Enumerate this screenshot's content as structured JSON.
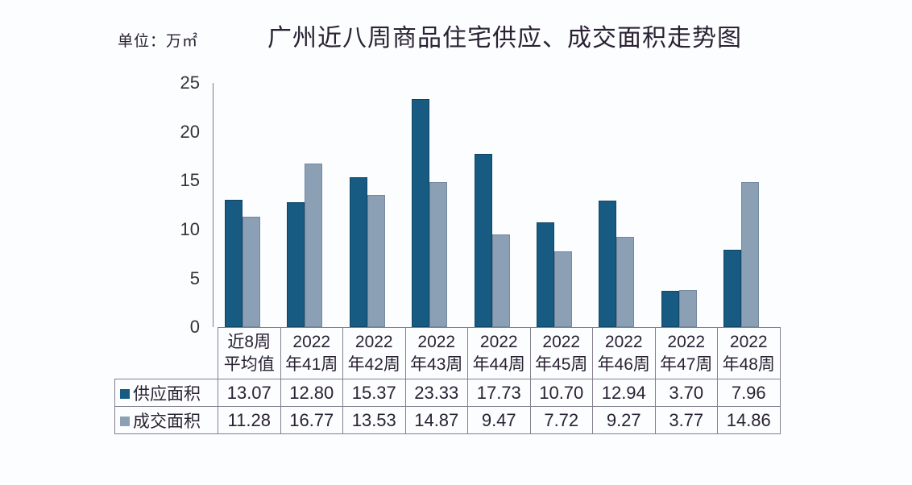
{
  "header": {
    "unit": "单位：万㎡",
    "title": "广州近八周商品住宅供应、成交面积走势图"
  },
  "colors": {
    "supply": "#175a82",
    "deal": "#8b9fb5"
  },
  "y_ticks": [
    "25",
    "20",
    "15",
    "10",
    "5",
    "0"
  ],
  "table": {
    "categories": [
      [
        "近8周",
        "平均值"
      ],
      [
        "2022",
        "年41周"
      ],
      [
        "2022",
        "年42周"
      ],
      [
        "2022",
        "年43周"
      ],
      [
        "2022",
        "年44周"
      ],
      [
        "2022",
        "年45周"
      ],
      [
        "2022",
        "年46周"
      ],
      [
        "2022",
        "年47周"
      ],
      [
        "2022",
        "年48周"
      ]
    ],
    "rows": [
      {
        "label": "供应面积",
        "values": [
          "13.07",
          "12.80",
          "15.37",
          "23.33",
          "17.73",
          "10.70",
          "12.94",
          "3.70",
          "7.96"
        ]
      },
      {
        "label": "成交面积",
        "values": [
          "11.28",
          "16.77",
          "13.53",
          "14.87",
          "9.47",
          "7.72",
          "9.27",
          "3.77",
          "14.86"
        ]
      }
    ]
  },
  "chart_data": {
    "type": "bar",
    "title": "广州近八周商品住宅供应、成交面积走势图",
    "ylabel": "单位：万㎡",
    "xlabel": "",
    "ylim": [
      0,
      25
    ],
    "yticks": [
      0,
      5,
      10,
      15,
      20,
      25
    ],
    "grid": false,
    "legend_position": "data-table",
    "categories": [
      "近8周平均值",
      "2022年41周",
      "2022年42周",
      "2022年43周",
      "2022年44周",
      "2022年45周",
      "2022年46周",
      "2022年47周",
      "2022年48周"
    ],
    "series": [
      {
        "name": "供应面积",
        "color": "#175a82",
        "values": [
          13.07,
          12.8,
          15.37,
          23.33,
          17.73,
          10.7,
          12.94,
          3.7,
          7.96
        ]
      },
      {
        "name": "成交面积",
        "color": "#8b9fb5",
        "values": [
          11.28,
          16.77,
          13.53,
          14.87,
          9.47,
          7.72,
          9.27,
          3.77,
          14.86
        ]
      }
    ]
  }
}
